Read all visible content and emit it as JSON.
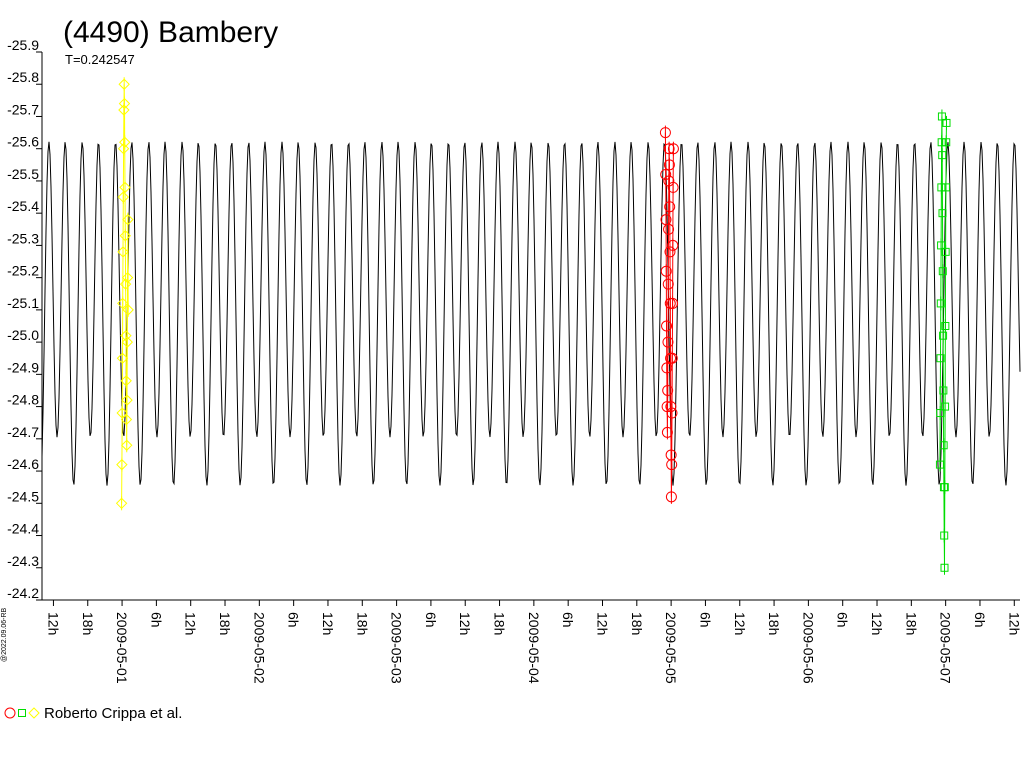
{
  "chart_data": {
    "type": "scatter",
    "title": "(4490) Bambery",
    "subtitle": "T=0.242547",
    "xlabel": "",
    "ylabel": "",
    "ylim": [
      -24.2,
      -25.9
    ],
    "y_inverted": true,
    "xlim": [
      "2009-04-30T10:00",
      "2009-05-07T13:00"
    ],
    "y_ticks": [
      "-25.9",
      "-25.8",
      "-25.7",
      "-25.6",
      "-25.5",
      "-25.4",
      "-25.3",
      "-25.2",
      "-25.1",
      "-25.0",
      "-24.9",
      "-24.8",
      "-24.7",
      "-24.6",
      "-24.5",
      "-24.4",
      "-24.3",
      "-24.2"
    ],
    "x_ticks": [
      "12h",
      "18h",
      "2009-05-01",
      "6h",
      "12h",
      "18h",
      "2009-05-02",
      "6h",
      "12h",
      "18h",
      "2009-05-03",
      "6h",
      "12h",
      "18h",
      "2009-05-04",
      "6h",
      "12h",
      "18h",
      "2009-05-05",
      "6h",
      "12h",
      "18h",
      "2009-05-06",
      "6h",
      "12h",
      "18h",
      "2009-05-07",
      "6h",
      "12h"
    ],
    "x_tick_times": [
      "2009-04-30T12:00",
      "2009-04-30T18:00",
      "2009-05-01T00:00",
      "2009-05-01T06:00",
      "2009-05-01T12:00",
      "2009-05-01T18:00",
      "2009-05-02T00:00",
      "2009-05-02T06:00",
      "2009-05-02T12:00",
      "2009-05-02T18:00",
      "2009-05-03T00:00",
      "2009-05-03T06:00",
      "2009-05-03T12:00",
      "2009-05-03T18:00",
      "2009-05-04T00:00",
      "2009-05-04T06:00",
      "2009-05-04T12:00",
      "2009-05-04T18:00",
      "2009-05-05T00:00",
      "2009-05-05T06:00",
      "2009-05-05T12:00",
      "2009-05-05T18:00",
      "2009-05-06T00:00",
      "2009-05-06T06:00",
      "2009-05-06T12:00",
      "2009-05-06T18:00",
      "2009-05-07T00:00",
      "2009-05-07T06:00",
      "2009-05-07T12:00"
    ],
    "model": {
      "period_days": 0.242547,
      "max_mag": -25.67,
      "min_mag": -24.53,
      "secondary_max": -25.57,
      "secondary_min": -24.73,
      "color": "#000000"
    },
    "series": [
      {
        "marker": "diamond",
        "color": "#ffff00",
        "points": [
          [
            "2009-04-30T23:55",
            -24.5
          ],
          [
            "2009-04-30T23:58",
            -24.62
          ],
          [
            "2009-05-01T00:01",
            -24.78
          ],
          [
            "2009-05-01T00:04",
            -24.95
          ],
          [
            "2009-05-01T00:07",
            -25.12
          ],
          [
            "2009-05-01T00:10",
            -25.28
          ],
          [
            "2009-05-01T00:13",
            -25.45
          ],
          [
            "2009-05-01T00:16",
            -25.6
          ],
          [
            "2009-05-01T00:19",
            -25.72
          ],
          [
            "2009-05-01T00:22",
            -25.8
          ],
          [
            "2009-05-01T00:25",
            -25.74
          ],
          [
            "2009-05-01T00:28",
            -25.62
          ],
          [
            "2009-05-01T00:31",
            -25.48
          ],
          [
            "2009-05-01T00:34",
            -25.33
          ],
          [
            "2009-05-01T00:37",
            -25.18
          ],
          [
            "2009-05-01T00:40",
            -25.02
          ],
          [
            "2009-05-01T00:43",
            -24.88
          ],
          [
            "2009-05-01T00:46",
            -24.76
          ],
          [
            "2009-05-01T00:49",
            -24.68
          ],
          [
            "2009-05-01T00:52",
            -24.82
          ],
          [
            "2009-05-01T00:55",
            -25.0
          ],
          [
            "2009-05-01T00:58",
            -25.2
          ],
          [
            "2009-05-01T01:01",
            -25.38
          ],
          [
            "2009-05-01T01:04",
            -25.1
          ]
        ]
      },
      {
        "marker": "circle",
        "color": "#ff0000",
        "points": [
          [
            "2009-05-04T23:00",
            -25.65
          ],
          [
            "2009-05-04T23:03",
            -25.52
          ],
          [
            "2009-05-04T23:06",
            -25.38
          ],
          [
            "2009-05-04T23:09",
            -25.22
          ],
          [
            "2009-05-04T23:12",
            -25.05
          ],
          [
            "2009-05-04T23:15",
            -24.92
          ],
          [
            "2009-05-04T23:18",
            -24.8
          ],
          [
            "2009-05-04T23:21",
            -24.72
          ],
          [
            "2009-05-04T23:24",
            -24.85
          ],
          [
            "2009-05-04T23:27",
            -25.0
          ],
          [
            "2009-05-04T23:30",
            -25.18
          ],
          [
            "2009-05-04T23:33",
            -25.35
          ],
          [
            "2009-05-04T23:36",
            -25.5
          ],
          [
            "2009-05-04T23:39",
            -25.6
          ],
          [
            "2009-05-04T23:42",
            -25.55
          ],
          [
            "2009-05-04T23:45",
            -25.42
          ],
          [
            "2009-05-04T23:48",
            -25.28
          ],
          [
            "2009-05-04T23:51",
            -25.12
          ],
          [
            "2009-05-04T23:54",
            -24.95
          ],
          [
            "2009-05-04T23:57",
            -24.8
          ],
          [
            "2009-05-05T00:00",
            -24.65
          ],
          [
            "2009-05-05T00:03",
            -24.52
          ],
          [
            "2009-05-05T00:06",
            -24.62
          ],
          [
            "2009-05-05T00:09",
            -24.78
          ],
          [
            "2009-05-05T00:12",
            -24.95
          ],
          [
            "2009-05-05T00:15",
            -25.12
          ],
          [
            "2009-05-05T00:18",
            -25.3
          ],
          [
            "2009-05-05T00:21",
            -25.48
          ],
          [
            "2009-05-05T00:24",
            -25.6
          ]
        ]
      },
      {
        "marker": "square",
        "color": "#00dd00",
        "points": [
          [
            "2009-05-06T23:00",
            -24.62
          ],
          [
            "2009-05-06T23:03",
            -24.78
          ],
          [
            "2009-05-06T23:06",
            -24.95
          ],
          [
            "2009-05-06T23:09",
            -25.12
          ],
          [
            "2009-05-06T23:12",
            -25.3
          ],
          [
            "2009-05-06T23:15",
            -25.48
          ],
          [
            "2009-05-06T23:18",
            -25.62
          ],
          [
            "2009-05-06T23:21",
            -25.7
          ],
          [
            "2009-05-06T23:24",
            -25.58
          ],
          [
            "2009-05-06T23:27",
            -25.4
          ],
          [
            "2009-05-06T23:30",
            -25.22
          ],
          [
            "2009-05-06T23:33",
            -25.02
          ],
          [
            "2009-05-06T23:36",
            -24.85
          ],
          [
            "2009-05-06T23:39",
            -24.68
          ],
          [
            "2009-05-06T23:42",
            -24.55
          ],
          [
            "2009-05-06T23:45",
            -24.4
          ],
          [
            "2009-05-06T23:48",
            -24.3
          ],
          [
            "2009-05-06T23:51",
            -24.55
          ],
          [
            "2009-05-06T23:54",
            -24.8
          ],
          [
            "2009-05-06T23:57",
            -25.05
          ],
          [
            "2009-05-07T00:00",
            -25.28
          ],
          [
            "2009-05-07T00:03",
            -25.48
          ],
          [
            "2009-05-07T00:06",
            -25.62
          ],
          [
            "2009-05-07T00:09",
            -25.68
          ]
        ]
      }
    ],
    "grid": false,
    "legend": "bottom-left"
  },
  "legend": {
    "credit": "Roberto Crippa et al.",
    "symbols": [
      {
        "marker": "circle",
        "color": "#ff0000"
      },
      {
        "marker": "square",
        "color": "#00dd00"
      },
      {
        "marker": "diamond",
        "color": "#ffff00"
      }
    ]
  },
  "stamp": "@2022.09.06-RB"
}
